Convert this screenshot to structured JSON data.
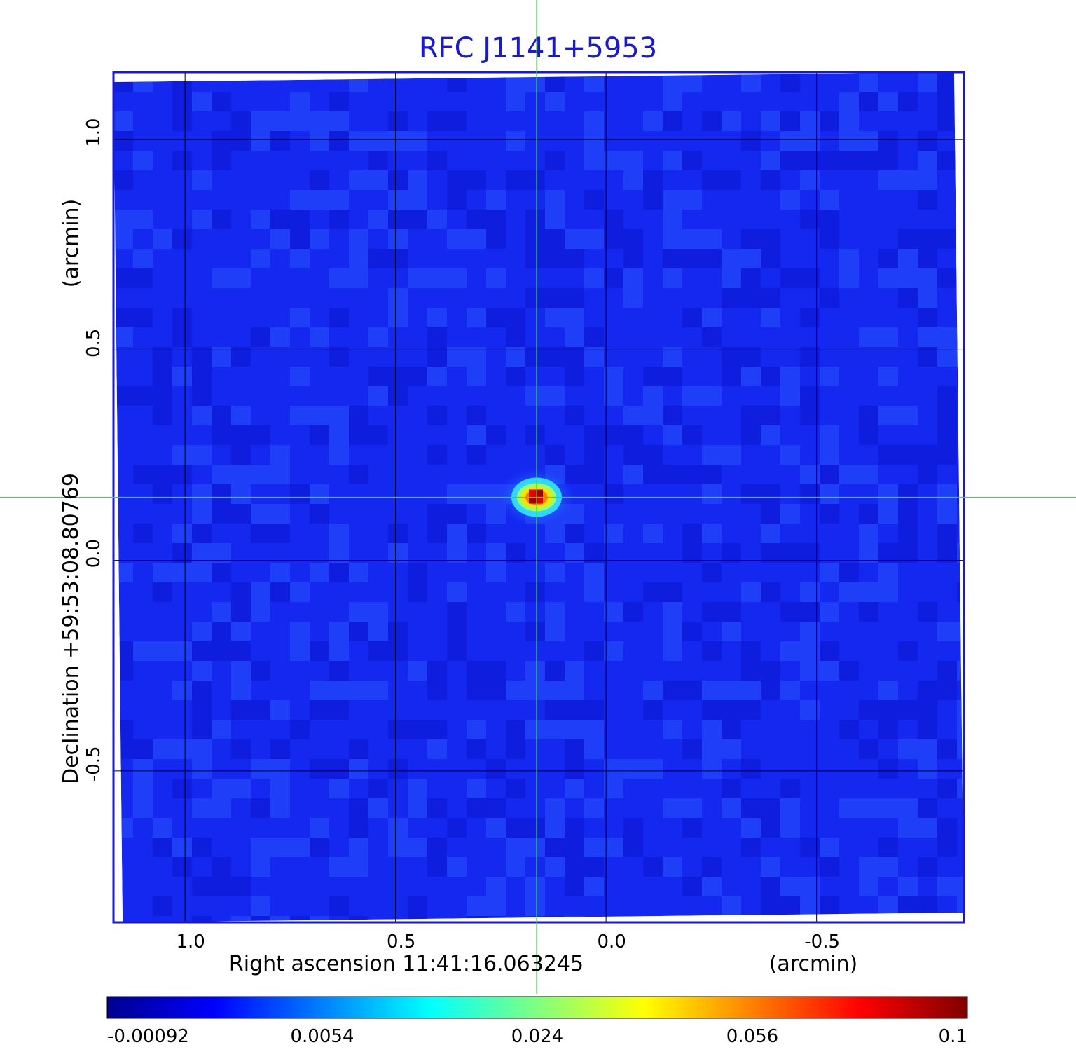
{
  "chart_data": {
    "type": "heatmap",
    "title": "RFC J1141+5953",
    "xlabel": "Right ascension  11:41:16.063245",
    "xunit": "(arcmin)",
    "ylabel": "Declination  +59:53:08.80769",
    "yunit": "(arcmin)",
    "xlim": [
      1.17,
      -0.85
    ],
    "ylim": [
      -0.86,
      1.16
    ],
    "x_ticks": [
      {
        "value": 1.0,
        "label": "1.0"
      },
      {
        "value": 0.5,
        "label": "0.5"
      },
      {
        "value": 0.0,
        "label": "0.0"
      },
      {
        "value": -0.5,
        "label": "-0.5"
      }
    ],
    "y_ticks": [
      {
        "value": 1.0,
        "label": "1.0"
      },
      {
        "value": 0.5,
        "label": "0.5"
      },
      {
        "value": 0.0,
        "label": "0.0"
      },
      {
        "value": -0.5,
        "label": "-0.5"
      }
    ],
    "grid": true,
    "crosshair": {
      "x": 0.165,
      "y": 0.15,
      "color": "#33dd33"
    },
    "source_peak": {
      "x": 0.165,
      "y": 0.15,
      "value": 0.1
    },
    "colormap": "jet",
    "colorbar": {
      "position": "bottom",
      "ticks": [
        "-0.00092",
        "0.0054",
        "0.024",
        "0.056",
        "0.1"
      ],
      "stops": [
        "#00008f",
        "#0000ff",
        "#0080ff",
        "#00ffff",
        "#80ff80",
        "#ffff00",
        "#ff8000",
        "#ff0000",
        "#800000"
      ]
    },
    "background_color": "#1428f0",
    "frame_color": "#1a1acc"
  }
}
